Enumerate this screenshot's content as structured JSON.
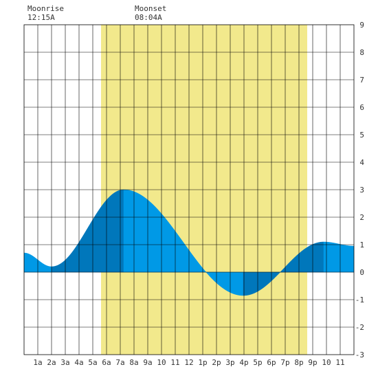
{
  "moon": {
    "rise_label": "Moonrise",
    "rise_time": "12:15A",
    "set_label": "Moonset",
    "set_time": "08:04A"
  },
  "chart_data": {
    "type": "area",
    "title": "",
    "xlabel": "",
    "ylabel": "",
    "x_start_hour": 0,
    "x_end_hour": 24,
    "ylim": [
      -3,
      9
    ],
    "grid": true,
    "x_tick_labels": [
      "1a",
      "2a",
      "3a",
      "4a",
      "5a",
      "6a",
      "7a",
      "8a",
      "9a",
      "10",
      "11",
      "12",
      "1p",
      "2p",
      "3p",
      "4p",
      "5p",
      "6p",
      "7p",
      "8p",
      "9p",
      "10",
      "11"
    ],
    "y_tick_labels": [
      "-3",
      "-2",
      "-1",
      "0",
      "1",
      "2",
      "3",
      "4",
      "5",
      "6",
      "7",
      "8",
      "9"
    ],
    "daylight": {
      "start_hour": 5.6,
      "end_hour": 20.6
    },
    "extremes": [
      {
        "hour": 0.0,
        "value": 0.7
      },
      {
        "hour": 2.0,
        "value": 0.2
      },
      {
        "hour": 7.25,
        "value": 3.0
      },
      {
        "hour": 15.95,
        "value": -0.85
      },
      {
        "hour": 21.8,
        "value": 1.1
      },
      {
        "hour": 24.0,
        "value": 0.95
      }
    ],
    "colors": {
      "daylight": "#f2e98c",
      "water_light": "#0099e6",
      "water_dark": "#0077bb",
      "grid": "#000000",
      "text": "#333333"
    }
  }
}
